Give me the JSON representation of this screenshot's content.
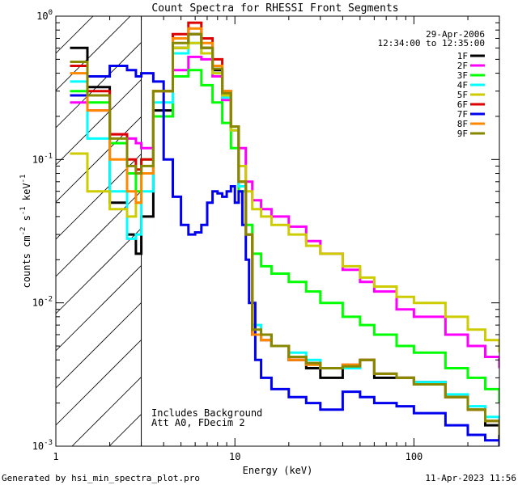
{
  "chart_data": {
    "type": "line",
    "title": "Count Spectra for RHESSI Front Segments",
    "xlabel": "Energy (keV)",
    "ylabel_parts": [
      "counts cm",
      "-2",
      " s",
      "-1",
      " keV",
      "-1"
    ],
    "xscale": "log",
    "yscale": "log",
    "xlim": [
      1,
      300
    ],
    "ylim": [
      0.001,
      1
    ],
    "x_ticks": [
      {
        "value": 1,
        "label": "1"
      },
      {
        "value": 10,
        "label": "10"
      },
      {
        "value": 100,
        "label": "100"
      }
    ],
    "y_ticks": [
      {
        "value": 1,
        "base": "10",
        "exp": "0"
      },
      {
        "value": 0.1,
        "base": "10",
        "exp": "-1"
      },
      {
        "value": 0.01,
        "base": "10",
        "exp": "-2"
      },
      {
        "value": 0.001,
        "base": "10",
        "exp": "-3"
      }
    ],
    "date": "29-Apr-2006",
    "time_range": "12:34:00 to 12:35:00",
    "annotations": [
      "Includes Background",
      "Att A0, FDecim 2"
    ],
    "excluded_region_max_energy": 3,
    "footer_left": "Generated by hsi_min_spectra_plot.pro",
    "footer_right": "11-Apr-2023 11:56",
    "series": [
      {
        "name": "1F",
        "color": "#000000",
        "x": [
          1.2,
          1.5,
          2,
          2.5,
          2.8,
          3,
          3.5,
          4.5,
          5.5,
          6.5,
          7.5,
          8.5,
          9.5,
          10.5,
          11.5,
          12.5,
          14,
          16,
          20,
          25,
          30,
          40,
          50,
          60,
          80,
          100,
          150,
          200,
          250,
          300
        ],
        "y": [
          0.6,
          0.32,
          0.05,
          0.03,
          0.022,
          0.04,
          0.22,
          0.6,
          0.75,
          0.6,
          0.42,
          0.28,
          0.16,
          0.065,
          0.03,
          0.006,
          0.006,
          0.005,
          0.004,
          0.0035,
          0.003,
          0.0035,
          0.004,
          0.003,
          0.003,
          0.0028,
          0.0022,
          0.0018,
          0.0014,
          0.0011
        ]
      },
      {
        "name": "2F",
        "color": "#ff00ff",
        "x": [
          1.2,
          1.5,
          2,
          2.5,
          2.8,
          3,
          3.5,
          4.5,
          5.5,
          6.5,
          7.5,
          8.5,
          9.5,
          10.5,
          11.5,
          12.5,
          14,
          16,
          20,
          25,
          30,
          40,
          50,
          60,
          80,
          100,
          150,
          200,
          250,
          300
        ],
        "y": [
          0.25,
          0.22,
          0.15,
          0.14,
          0.13,
          0.12,
          0.2,
          0.42,
          0.52,
          0.5,
          0.38,
          0.26,
          0.17,
          0.12,
          0.07,
          0.052,
          0.045,
          0.04,
          0.034,
          0.027,
          0.022,
          0.017,
          0.014,
          0.012,
          0.009,
          0.008,
          0.006,
          0.005,
          0.0042,
          0.0035
        ]
      },
      {
        "name": "3F",
        "color": "#00ff00",
        "x": [
          1.2,
          1.5,
          2,
          2.5,
          2.8,
          3,
          3.5,
          4.5,
          5.5,
          6.5,
          7.5,
          8.5,
          9.5,
          10.5,
          11.5,
          12.5,
          14,
          16,
          20,
          25,
          30,
          40,
          50,
          60,
          80,
          100,
          150,
          200,
          250,
          300
        ],
        "y": [
          0.3,
          0.25,
          0.13,
          0.08,
          0.06,
          0.1,
          0.2,
          0.38,
          0.42,
          0.33,
          0.25,
          0.18,
          0.12,
          0.06,
          0.035,
          0.022,
          0.018,
          0.016,
          0.014,
          0.012,
          0.01,
          0.008,
          0.007,
          0.006,
          0.005,
          0.0045,
          0.0035,
          0.003,
          0.0025,
          0.002
        ]
      },
      {
        "name": "4F",
        "color": "#00ffff",
        "x": [
          1.2,
          1.5,
          2,
          2.5,
          2.8,
          3,
          3.5,
          4.5,
          5.5,
          6.5,
          7.5,
          8.5,
          9.5,
          10.5,
          11.5,
          12.5,
          14,
          16,
          20,
          25,
          30,
          40,
          50,
          60,
          80,
          100,
          150,
          200,
          250,
          300
        ],
        "y": [
          0.35,
          0.14,
          0.06,
          0.028,
          0.03,
          0.06,
          0.25,
          0.55,
          0.65,
          0.55,
          0.4,
          0.27,
          0.16,
          0.065,
          0.03,
          0.007,
          0.006,
          0.005,
          0.0045,
          0.004,
          0.0035,
          0.0035,
          0.004,
          0.0032,
          0.003,
          0.0028,
          0.0023,
          0.0019,
          0.0016,
          0.0013
        ]
      },
      {
        "name": "5F",
        "color": "#cccc00",
        "x": [
          1.2,
          1.5,
          2,
          2.5,
          2.8,
          3,
          3.5,
          4.5,
          5.5,
          6.5,
          7.5,
          8.5,
          9.5,
          10.5,
          11.5,
          12.5,
          14,
          16,
          20,
          25,
          30,
          40,
          50,
          60,
          80,
          100,
          150,
          200,
          250,
          300
        ],
        "y": [
          0.11,
          0.06,
          0.045,
          0.04,
          0.05,
          0.08,
          0.3,
          0.6,
          0.65,
          0.55,
          0.4,
          0.28,
          0.16,
          0.09,
          0.06,
          0.045,
          0.04,
          0.035,
          0.03,
          0.025,
          0.022,
          0.018,
          0.015,
          0.013,
          0.011,
          0.01,
          0.008,
          0.0065,
          0.0055,
          0.0045
        ]
      },
      {
        "name": "6F",
        "color": "#dd0000",
        "x": [
          1.2,
          1.5,
          2,
          2.5,
          2.8,
          3,
          3.5,
          4.5,
          5.5,
          6.5,
          7.5,
          8.5,
          9.5,
          10.5,
          11.5,
          12.5,
          14,
          16,
          20,
          25,
          30,
          40,
          50,
          60,
          80,
          100,
          150,
          200,
          250,
          300
        ],
        "y": [
          0.45,
          0.3,
          0.15,
          0.1,
          0.085,
          0.1,
          0.3,
          0.75,
          0.9,
          0.7,
          0.5,
          0.3,
          0.17,
          0.07,
          0.03,
          0.006,
          0.0055,
          0.005,
          0.004,
          0.0038,
          0.0035,
          0.0037,
          0.004,
          0.0032,
          0.003,
          0.0027,
          0.0022,
          0.0018,
          0.0015,
          0.0012
        ]
      },
      {
        "name": "7F",
        "color": "#0000ee",
        "x": [
          1.2,
          1.5,
          2,
          2.5,
          2.8,
          3,
          3.5,
          4,
          4.5,
          5,
          5.5,
          6,
          6.5,
          7,
          7.5,
          8,
          8.5,
          9,
          9.5,
          10,
          10.5,
          11,
          11.5,
          12,
          13,
          14,
          16,
          20,
          25,
          30,
          40,
          50,
          60,
          80,
          100,
          150,
          200,
          250,
          300
        ],
        "y": [
          0.28,
          0.38,
          0.45,
          0.42,
          0.38,
          0.4,
          0.35,
          0.1,
          0.055,
          0.035,
          0.03,
          0.031,
          0.035,
          0.05,
          0.06,
          0.058,
          0.055,
          0.06,
          0.065,
          0.05,
          0.06,
          0.035,
          0.02,
          0.01,
          0.004,
          0.003,
          0.0025,
          0.0022,
          0.002,
          0.0018,
          0.0024,
          0.0022,
          0.002,
          0.0019,
          0.0017,
          0.0014,
          0.0012,
          0.0011,
          0.001
        ]
      },
      {
        "name": "8F",
        "color": "#ff8800",
        "x": [
          1.2,
          1.5,
          2,
          2.5,
          2.8,
          3,
          3.5,
          4.5,
          5.5,
          6.5,
          7.5,
          8.5,
          9.5,
          10.5,
          11.5,
          12.5,
          14,
          16,
          20,
          25,
          30,
          40,
          50,
          60,
          80,
          100,
          150,
          200,
          250,
          300
        ],
        "y": [
          0.4,
          0.22,
          0.1,
          0.06,
          0.05,
          0.08,
          0.3,
          0.7,
          0.82,
          0.65,
          0.45,
          0.3,
          0.17,
          0.07,
          0.03,
          0.006,
          0.0055,
          0.005,
          0.004,
          0.0037,
          0.0035,
          0.0037,
          0.004,
          0.0032,
          0.003,
          0.0027,
          0.0022,
          0.0018,
          0.0015,
          0.0012
        ]
      },
      {
        "name": "9F",
        "color": "#888800",
        "x": [
          1.2,
          1.5,
          2,
          2.5,
          2.8,
          3,
          3.5,
          4.5,
          5.5,
          6.5,
          7.5,
          8.5,
          9.5,
          10.5,
          11.5,
          12.5,
          14,
          16,
          20,
          25,
          30,
          40,
          50,
          60,
          80,
          100,
          150,
          200,
          250,
          300
        ],
        "y": [
          0.48,
          0.28,
          0.14,
          0.09,
          0.08,
          0.09,
          0.3,
          0.65,
          0.75,
          0.6,
          0.43,
          0.29,
          0.17,
          0.07,
          0.03,
          0.0065,
          0.006,
          0.005,
          0.0042,
          0.0038,
          0.0035,
          0.0036,
          0.004,
          0.0032,
          0.003,
          0.0027,
          0.0022,
          0.0018,
          0.0015,
          0.0012
        ]
      }
    ]
  }
}
